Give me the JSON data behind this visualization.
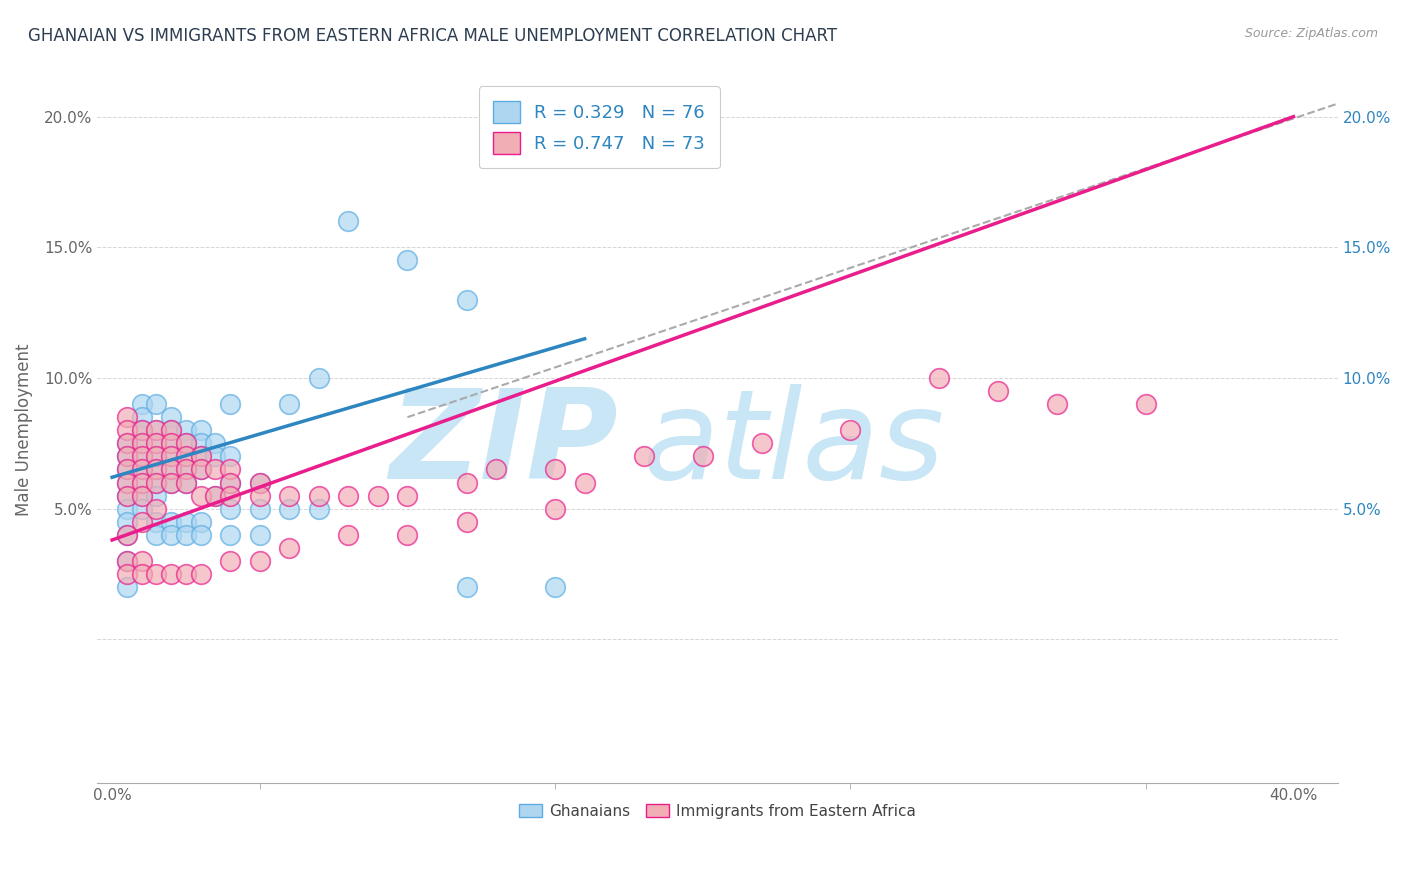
{
  "title": "GHANAIAN VS IMMIGRANTS FROM EASTERN AFRICA MALE UNEMPLOYMENT CORRELATION CHART",
  "source": "Source: ZipAtlas.com",
  "ylabel": "Male Unemployment",
  "xlim": [
    -0.005,
    0.415
  ],
  "ylim": [
    -0.055,
    0.215
  ],
  "x_ticks": [
    0.0,
    0.1,
    0.2,
    0.3,
    0.4
  ],
  "x_tick_labels": [
    "0.0%",
    "",
    "",
    "",
    "40.0%"
  ],
  "y_ticks": [
    0.0,
    0.05,
    0.1,
    0.15,
    0.2
  ],
  "y_tick_labels": [
    "",
    "5.0%",
    "10.0%",
    "15.0%",
    "20.0%"
  ],
  "right_y_ticks": [
    0.05,
    0.1,
    0.15,
    0.2
  ],
  "right_y_tick_labels": [
    "5.0%",
    "10.0%",
    "15.0%",
    "20.0%"
  ],
  "R_blue": 0.329,
  "N_blue": 76,
  "R_pink": 0.747,
  "N_pink": 73,
  "blue_color": "#AED6F1",
  "pink_color": "#F1AEB5",
  "blue_edge_color": "#5DADE2",
  "pink_edge_color": "#E91E8C",
  "blue_line_color": "#2E86C1",
  "pink_line_color": "#E91E8C",
  "dashed_line_color": "#AAAAAA",
  "watermark_color": "#C8E6F5",
  "title_color": "#2C3E50",
  "legend_text_color": "#2E86C1",
  "blue_scatter_x": [
    0.005,
    0.005,
    0.005,
    0.005,
    0.005,
    0.005,
    0.005,
    0.005,
    0.005,
    0.005,
    0.01,
    0.01,
    0.01,
    0.01,
    0.01,
    0.01,
    0.01,
    0.01,
    0.01,
    0.015,
    0.015,
    0.015,
    0.015,
    0.015,
    0.015,
    0.015,
    0.02,
    0.02,
    0.02,
    0.02,
    0.02,
    0.02,
    0.025,
    0.025,
    0.025,
    0.025,
    0.025,
    0.03,
    0.03,
    0.03,
    0.03,
    0.035,
    0.035,
    0.035,
    0.04,
    0.04,
    0.05,
    0.015,
    0.02,
    0.025,
    0.03,
    0.04,
    0.05,
    0.06,
    0.07,
    0.015,
    0.02,
    0.025,
    0.03,
    0.04,
    0.05,
    0.08,
    0.1,
    0.12,
    0.04,
    0.06,
    0.07,
    0.12,
    0.15
  ],
  "blue_scatter_y": [
    0.075,
    0.07,
    0.065,
    0.06,
    0.055,
    0.05,
    0.045,
    0.04,
    0.03,
    0.02,
    0.09,
    0.085,
    0.08,
    0.075,
    0.07,
    0.065,
    0.06,
    0.055,
    0.05,
    0.09,
    0.08,
    0.075,
    0.07,
    0.065,
    0.06,
    0.055,
    0.085,
    0.08,
    0.075,
    0.07,
    0.065,
    0.06,
    0.08,
    0.075,
    0.07,
    0.065,
    0.06,
    0.08,
    0.075,
    0.07,
    0.065,
    0.075,
    0.07,
    0.055,
    0.07,
    0.06,
    0.06,
    0.045,
    0.045,
    0.045,
    0.045,
    0.05,
    0.05,
    0.05,
    0.05,
    0.04,
    0.04,
    0.04,
    0.04,
    0.04,
    0.04,
    0.16,
    0.145,
    0.13,
    0.09,
    0.09,
    0.1,
    0.02,
    0.02
  ],
  "pink_scatter_x": [
    0.005,
    0.005,
    0.005,
    0.005,
    0.005,
    0.005,
    0.005,
    0.005,
    0.005,
    0.01,
    0.01,
    0.01,
    0.01,
    0.01,
    0.01,
    0.01,
    0.01,
    0.015,
    0.015,
    0.015,
    0.015,
    0.015,
    0.015,
    0.02,
    0.02,
    0.02,
    0.02,
    0.02,
    0.025,
    0.025,
    0.025,
    0.025,
    0.03,
    0.03,
    0.03,
    0.035,
    0.035,
    0.04,
    0.04,
    0.04,
    0.05,
    0.05,
    0.06,
    0.07,
    0.08,
    0.09,
    0.1,
    0.12,
    0.13,
    0.15,
    0.16,
    0.18,
    0.2,
    0.22,
    0.25,
    0.28,
    0.3,
    0.32,
    0.35,
    0.005,
    0.01,
    0.015,
    0.02,
    0.025,
    0.03,
    0.04,
    0.05,
    0.06,
    0.08,
    0.1,
    0.12,
    0.15
  ],
  "pink_scatter_y": [
    0.085,
    0.08,
    0.075,
    0.07,
    0.065,
    0.06,
    0.055,
    0.04,
    0.03,
    0.08,
    0.075,
    0.07,
    0.065,
    0.06,
    0.055,
    0.045,
    0.03,
    0.08,
    0.075,
    0.07,
    0.065,
    0.06,
    0.05,
    0.08,
    0.075,
    0.07,
    0.065,
    0.06,
    0.075,
    0.07,
    0.065,
    0.06,
    0.07,
    0.065,
    0.055,
    0.065,
    0.055,
    0.065,
    0.06,
    0.055,
    0.06,
    0.055,
    0.055,
    0.055,
    0.055,
    0.055,
    0.055,
    0.06,
    0.065,
    0.065,
    0.06,
    0.07,
    0.07,
    0.075,
    0.08,
    0.1,
    0.095,
    0.09,
    0.09,
    0.025,
    0.025,
    0.025,
    0.025,
    0.025,
    0.025,
    0.03,
    0.03,
    0.035,
    0.04,
    0.04,
    0.045,
    0.05
  ],
  "blue_trendline_x": [
    0.0,
    0.16
  ],
  "blue_trendline_y": [
    0.062,
    0.115
  ],
  "pink_trendline_x": [
    0.0,
    0.4
  ],
  "pink_trendline_y": [
    0.038,
    0.2
  ],
  "dashed_trendline_x": [
    0.1,
    0.415
  ],
  "dashed_trendline_y": [
    0.085,
    0.205
  ]
}
